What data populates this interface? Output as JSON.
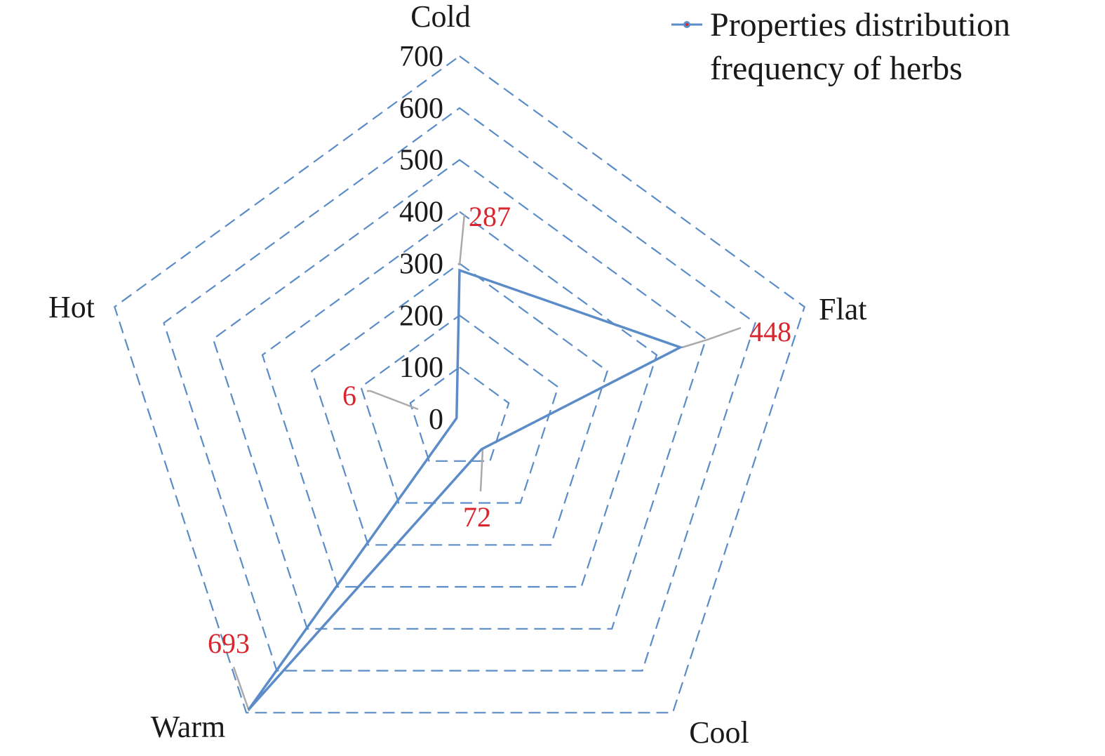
{
  "chart_data": {
    "type": "radar",
    "categories": [
      "Cold",
      "Flat",
      "Cool",
      "Warm",
      "Hot"
    ],
    "series": [
      {
        "name": "Properties distribution frequency of herbs",
        "values": [
          287,
          448,
          72,
          693,
          6
        ]
      }
    ],
    "rlim": [
      0,
      700
    ],
    "ticks": [
      0,
      100,
      200,
      300,
      400,
      500,
      600,
      700
    ],
    "grid": true,
    "grid_style": "dashed",
    "legend_position": "top-right",
    "legend_lines": [
      "Properties distribution",
      "frequency of herbs"
    ],
    "colors": {
      "series": "#5b8cc8",
      "grid": "#5b8cc8",
      "data_label": "#d9262e",
      "leader_line": "#aaaaaa"
    }
  }
}
